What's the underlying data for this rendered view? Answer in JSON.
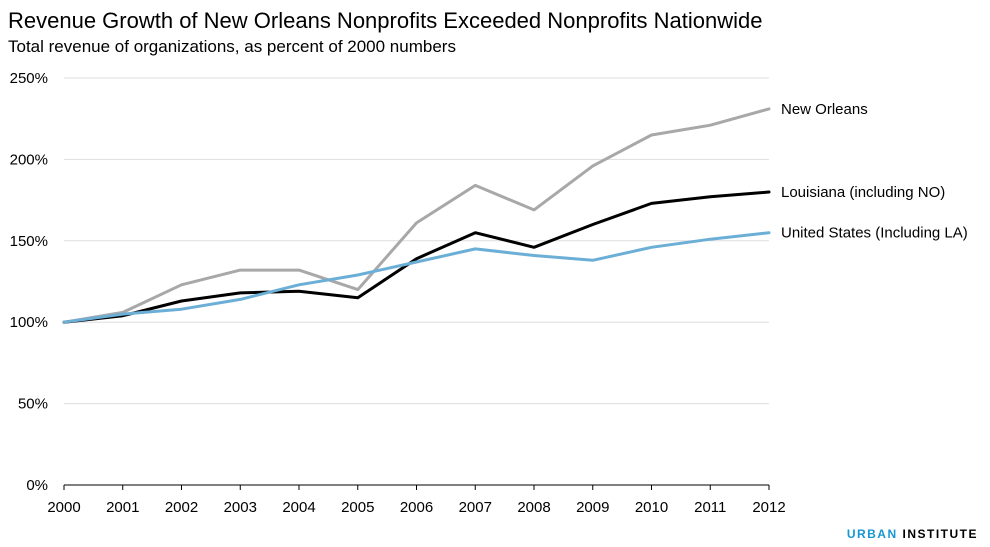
{
  "chart_data": {
    "type": "line",
    "title": "Revenue Growth of New Orleans Nonprofits Exceeded Nonprofits Nationwide",
    "subtitle": "Total revenue of organizations, as percent of 2000 numbers",
    "x": [
      "2000",
      "2001",
      "2002",
      "2003",
      "2004",
      "2005",
      "2006",
      "2007",
      "2008",
      "2009",
      "2010",
      "2011",
      "2012"
    ],
    "ylim": [
      0,
      250
    ],
    "yticks": [
      0,
      50,
      100,
      150,
      200,
      250
    ],
    "ytick_labels": [
      "0%",
      "50%",
      "100%",
      "150%",
      "200%",
      "250%"
    ],
    "grid": true,
    "series": [
      {
        "name": "New Orleans",
        "color": "#a8a8a8",
        "values": [
          100,
          106,
          123,
          132,
          132,
          120,
          161,
          184,
          169,
          196,
          215,
          221,
          231
        ]
      },
      {
        "name": "Louisiana (including NO)",
        "color": "#000000",
        "values": [
          100,
          104,
          113,
          118,
          119,
          115,
          139,
          155,
          146,
          160,
          173,
          177,
          180
        ]
      },
      {
        "name": "United States (Including LA)",
        "color": "#6baed6",
        "values": [
          100,
          105,
          108,
          114,
          123,
          129,
          137,
          145,
          141,
          138,
          146,
          151,
          155
        ]
      }
    ]
  },
  "logo": {
    "part1": "URBAN",
    "part2": "INSTITUTE"
  }
}
